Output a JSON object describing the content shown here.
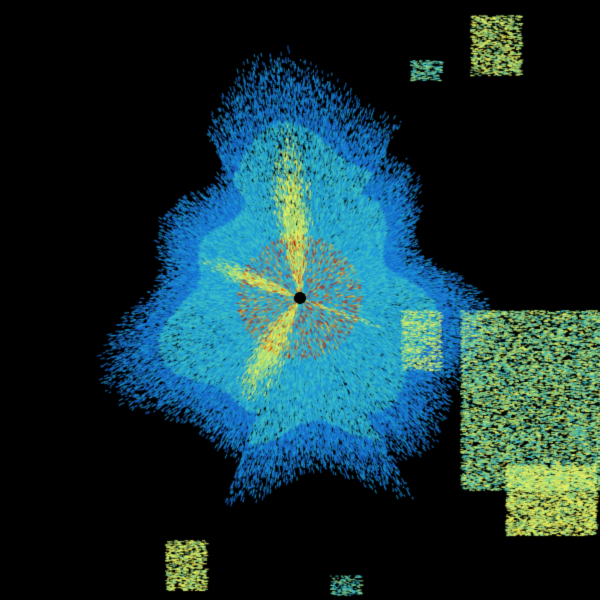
{
  "image": {
    "kind": "radar-reflectivity-sweep",
    "background_color": "#000000",
    "palette": [
      "#1a6fd0",
      "#1e9ad8",
      "#3cc0c8",
      "#8fd88a",
      "#e8f060",
      "#f0c030",
      "#e06a10",
      "#c01808"
    ],
    "radar_site_marker_color": "#000000"
  }
}
